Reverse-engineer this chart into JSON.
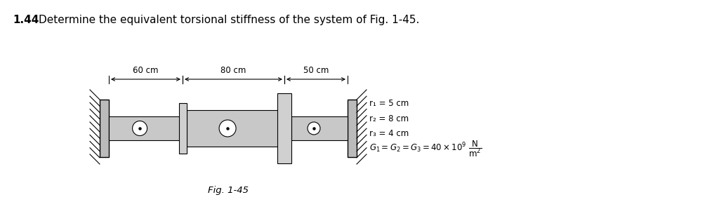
{
  "title_number": "1.44",
  "title_text": "Determine the equivalent torsional stiffness of the system of Fig. 1-45.",
  "fig_label": "Fig. 1-45",
  "annotation_lines": [
    "r₁ = 5 cm",
    "r₂ = 8 cm",
    "r₃ = 4 cm",
    "G₁ = G₂ = G₃ = 40 × 10⁹ N/m²"
  ],
  "dim_labels": [
    "60 cm",
    "80 cm",
    "50 cm"
  ],
  "background_color": "#ffffff",
  "shaft_color": "#c8c8c8",
  "outline_color": "#000000",
  "wall_color": "#888888",
  "disk_color": "#d0d0d0"
}
